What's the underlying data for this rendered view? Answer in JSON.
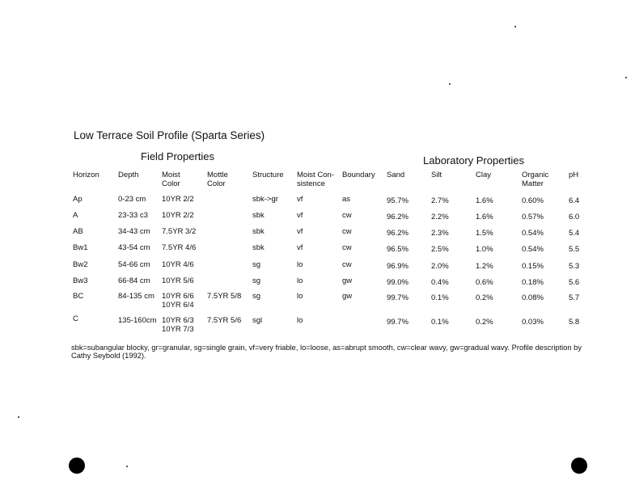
{
  "title": "Low Terrace Soil Profile (Sparta Series)",
  "field_heading": "Field Properties",
  "lab_heading": "Laboratory Properties",
  "columns": [
    "Horizon",
    "Depth",
    "Moist\nColor",
    "Mottle\nColor",
    "Structure",
    "Moist Con-\nsistence",
    "Boundary",
    "Sand",
    "Silt",
    "Clay",
    "Organic\nMatter",
    "pH"
  ],
  "rows": [
    [
      "Ap",
      "0-23 cm",
      "10YR 2/2",
      "",
      "sbk->gr",
      "vf",
      "as",
      "95.7%",
      "2.7%",
      "1.6%",
      "0.60%",
      "6.4"
    ],
    [
      "A",
      "23-33 c3",
      "10YR 2/2",
      "",
      "sbk",
      "vf",
      "cw",
      "96.2%",
      "2.2%",
      "1.6%",
      "0.57%",
      "6.0"
    ],
    [
      "AB",
      "34-43 cm",
      "7.5YR 3/2",
      "",
      "sbk",
      "vf",
      "cw",
      "96.2%",
      "2.3%",
      "1.5%",
      "0.54%",
      "5.4"
    ],
    [
      "Bw1",
      "43-54 cm",
      "7.5YR 4/6",
      "",
      "sbk",
      "vf",
      "cw",
      "96.5%",
      "2.5%",
      "1.0%",
      "0.54%",
      "5.5"
    ],
    [
      "Bw2",
      "54-66 cm",
      "10YR 4/6",
      "",
      "sg",
      "lo",
      "cw",
      "96.9%",
      "2.0%",
      "1.2%",
      "0.15%",
      "5.3"
    ],
    [
      "Bw3",
      "66-84 cm",
      "10YR 5/6",
      "",
      "sg",
      "lo",
      "gw",
      "99.0%",
      "0.4%",
      "0.6%",
      "0.18%",
      "5.6"
    ],
    [
      "BC",
      "84-135 cm",
      "10YR 6/6\n10YR 6/4",
      "7.5YR 5/8",
      "sg",
      "lo",
      "gw",
      "99.7%",
      "0.1%",
      "0.2%",
      "0.08%",
      "5.7"
    ],
    [
      "C",
      "135-160cm",
      "10YR 6/3\n10YR 7/3",
      "7.5YR 5/6",
      "sgl",
      "lo",
      "",
      "99.7%",
      "0.1%",
      "0.2%",
      "0.03%",
      "5.8"
    ]
  ],
  "footnote": "sbk=subangular blocky, gr=granular, sg=single grain, vf=very friable, lo=loose, as=abrupt smooth, cw=clear wavy, gw=gradual wavy.  Profile description by  Cathy Seybold (1992)."
}
